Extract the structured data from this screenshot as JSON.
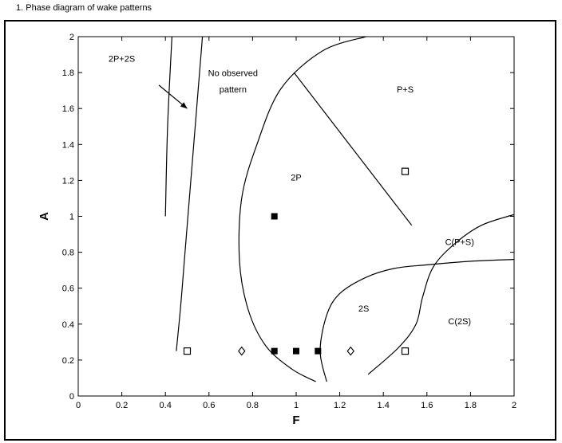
{
  "top_caption": "1.  Phase diagram of wake patterns",
  "chart_data": {
    "type": "scatter",
    "title": "",
    "xlabel": "F",
    "ylabel": "A",
    "xlim": [
      0,
      2
    ],
    "ylim": [
      0,
      2
    ],
    "x_ticks": [
      "0",
      "0.2",
      "0.4",
      "0.6",
      "0.8",
      "1",
      "1.2",
      "1.4",
      "1.6",
      "1.8",
      "2"
    ],
    "y_ticks": [
      "0",
      "0.2",
      "0.4",
      "0.6",
      "0.8",
      "1",
      "1.2",
      "1.4",
      "1.6",
      "1.8",
      "2"
    ],
    "grid": false,
    "legend": "none",
    "series": [
      {
        "marker": "filled-square",
        "color": "#000000",
        "points": [
          [
            0.9,
            1.0
          ],
          [
            0.9,
            0.25
          ],
          [
            1.0,
            0.25
          ],
          [
            1.1,
            0.25
          ]
        ]
      },
      {
        "marker": "open-square",
        "color": "#000000",
        "points": [
          [
            0.5,
            0.25
          ],
          [
            1.5,
            1.25
          ],
          [
            1.5,
            0.25
          ]
        ]
      },
      {
        "marker": "open-diamond",
        "color": "#000000",
        "points": [
          [
            0.75,
            0.25
          ],
          [
            1.25,
            0.25
          ]
        ]
      }
    ],
    "boundaries": [
      {
        "id": "left-line",
        "points": [
          [
            0.43,
            2.0
          ],
          [
            0.41,
            1.5
          ],
          [
            0.4,
            1.0
          ]
        ]
      },
      {
        "id": "second-line",
        "points": [
          [
            0.57,
            2.0
          ],
          [
            0.53,
            1.4
          ],
          [
            0.49,
            0.8
          ],
          [
            0.47,
            0.5
          ],
          [
            0.45,
            0.25
          ]
        ]
      },
      {
        "id": "2p-boundary",
        "points": [
          [
            1.32,
            2.0
          ],
          [
            1.12,
            1.92
          ],
          [
            0.93,
            1.71
          ],
          [
            0.82,
            1.4
          ],
          [
            0.75,
            1.1
          ],
          [
            0.74,
            0.75
          ],
          [
            0.78,
            0.48
          ],
          [
            0.86,
            0.28
          ],
          [
            0.98,
            0.15
          ],
          [
            1.09,
            0.08
          ]
        ]
      },
      {
        "id": "diagonal-divider",
        "points": [
          [
            0.99,
            1.8
          ],
          [
            1.53,
            0.95
          ]
        ]
      },
      {
        "id": "2s-left-boundary",
        "points": [
          [
            1.14,
            0.08
          ],
          [
            1.11,
            0.25
          ],
          [
            1.14,
            0.45
          ],
          [
            1.2,
            0.57
          ],
          [
            1.32,
            0.66
          ],
          [
            1.45,
            0.71
          ],
          [
            1.6,
            0.73
          ],
          [
            1.8,
            0.75
          ],
          [
            2.0,
            0.76
          ]
        ]
      },
      {
        "id": "upper-right-boundary",
        "points": [
          [
            1.33,
            0.12
          ],
          [
            1.47,
            0.27
          ],
          [
            1.55,
            0.4
          ],
          [
            1.58,
            0.55
          ],
          [
            1.63,
            0.72
          ],
          [
            1.73,
            0.85
          ],
          [
            1.85,
            0.95
          ],
          [
            2.0,
            1.01
          ]
        ]
      }
    ],
    "annotations": [
      {
        "text": "2P+2S",
        "x": 0.2,
        "y": 1.86
      },
      {
        "text": "No observed",
        "x": 0.71,
        "y": 1.78
      },
      {
        "text": "pattern",
        "x": 0.71,
        "y": 1.69
      },
      {
        "text": "P+S",
        "x": 1.5,
        "y": 1.69
      },
      {
        "text": "2P",
        "x": 1.0,
        "y": 1.2
      },
      {
        "text": "C(P+S)",
        "x": 1.75,
        "y": 0.84
      },
      {
        "text": "2S",
        "x": 1.31,
        "y": 0.47
      },
      {
        "text": "C(2S)",
        "x": 1.75,
        "y": 0.4
      }
    ],
    "arrow": {
      "from": [
        0.37,
        1.73
      ],
      "to": [
        0.5,
        1.6
      ]
    }
  }
}
